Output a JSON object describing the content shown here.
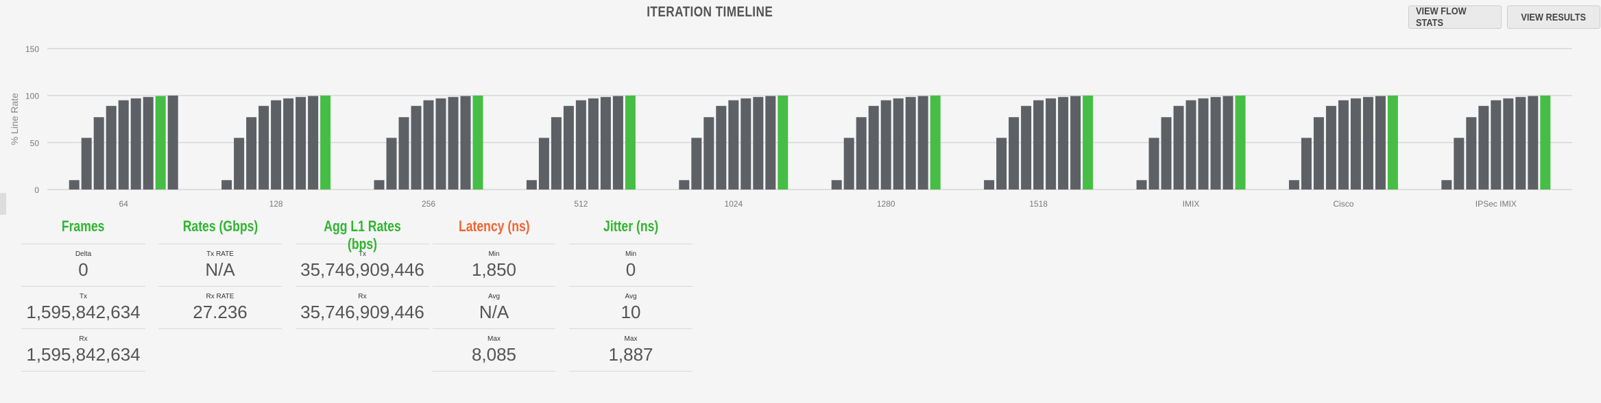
{
  "header": {
    "title": "ITERATION TIMELINE",
    "view_flow_stats": "VIEW FLOW STATS",
    "view_results": "VIEW RESULTS"
  },
  "chart_data": {
    "type": "bar",
    "ylabel": "% Line Rate",
    "ylim": [
      0,
      150
    ],
    "yticks": [
      0,
      50,
      100,
      150
    ],
    "grid": true,
    "colors": {
      "default": "#5d6166",
      "highlight": "#46be46"
    },
    "categories": [
      "64",
      "128",
      "256",
      "512",
      "1024",
      "1280",
      "1518",
      "IMIX",
      "Cisco",
      "IPSec IMIX"
    ],
    "groups": [
      {
        "values": [
          10,
          55,
          77,
          89,
          95,
          97,
          98.5,
          99.5,
          100
        ],
        "highlight_index": 7
      },
      {
        "values": [
          10,
          55,
          77,
          89,
          95,
          97,
          98.5,
          99.5,
          100
        ],
        "highlight_index": 8
      },
      {
        "values": [
          10,
          55,
          77,
          89,
          95,
          97,
          98.5,
          99.5,
          100
        ],
        "highlight_index": 8
      },
      {
        "values": [
          10,
          55,
          77,
          89,
          95,
          97,
          98.5,
          99.5,
          100
        ],
        "highlight_index": 8
      },
      {
        "values": [
          10,
          55,
          77,
          89,
          95,
          97,
          98.5,
          99.5,
          100
        ],
        "highlight_index": 8
      },
      {
        "values": [
          10,
          55,
          77,
          89,
          95,
          97,
          98.5,
          99.5,
          100
        ],
        "highlight_index": 8
      },
      {
        "values": [
          10,
          55,
          77,
          89,
          95,
          97,
          98.5,
          99.5,
          100
        ],
        "highlight_index": 8
      },
      {
        "values": [
          10,
          55,
          77,
          89,
          95,
          97,
          98.5,
          99.5,
          100
        ],
        "highlight_index": 8
      },
      {
        "values": [
          10,
          55,
          77,
          89,
          95,
          97,
          98.5,
          99.5,
          100
        ],
        "highlight_index": 8
      },
      {
        "values": [
          10,
          55,
          77,
          89,
          95,
          97,
          98.5,
          99.5,
          100
        ],
        "highlight_index": 8
      }
    ]
  },
  "stats": [
    {
      "title": "Frames",
      "color": "green",
      "rows": [
        {
          "label": "Delta",
          "value": "0"
        },
        {
          "label": "Tx",
          "value": "1,595,842,634"
        },
        {
          "label": "Rx",
          "value": "1,595,842,634"
        }
      ]
    },
    {
      "title": "Rates (Gbps)",
      "color": "green",
      "rows": [
        {
          "label": "Tx RATE",
          "value": "N/A"
        },
        {
          "label": "Rx RATE",
          "value": "27.236"
        }
      ]
    },
    {
      "title": "Agg L1 Rates (bps)",
      "color": "green",
      "rows": [
        {
          "label": "Tx",
          "value": "35,746,909,446"
        },
        {
          "label": "Rx",
          "value": "35,746,909,446"
        }
      ]
    },
    {
      "title": "Latency (ns)",
      "color": "orange",
      "rows": [
        {
          "label": "Min",
          "value": "1,850"
        },
        {
          "label": "Avg",
          "value": "N/A"
        },
        {
          "label": "Max",
          "value": "8,085"
        }
      ]
    },
    {
      "title": "Jitter (ns)",
      "color": "green",
      "rows": [
        {
          "label": "Min",
          "value": "0"
        },
        {
          "label": "Avg",
          "value": "10"
        },
        {
          "label": "Max",
          "value": "1,887"
        }
      ]
    }
  ]
}
